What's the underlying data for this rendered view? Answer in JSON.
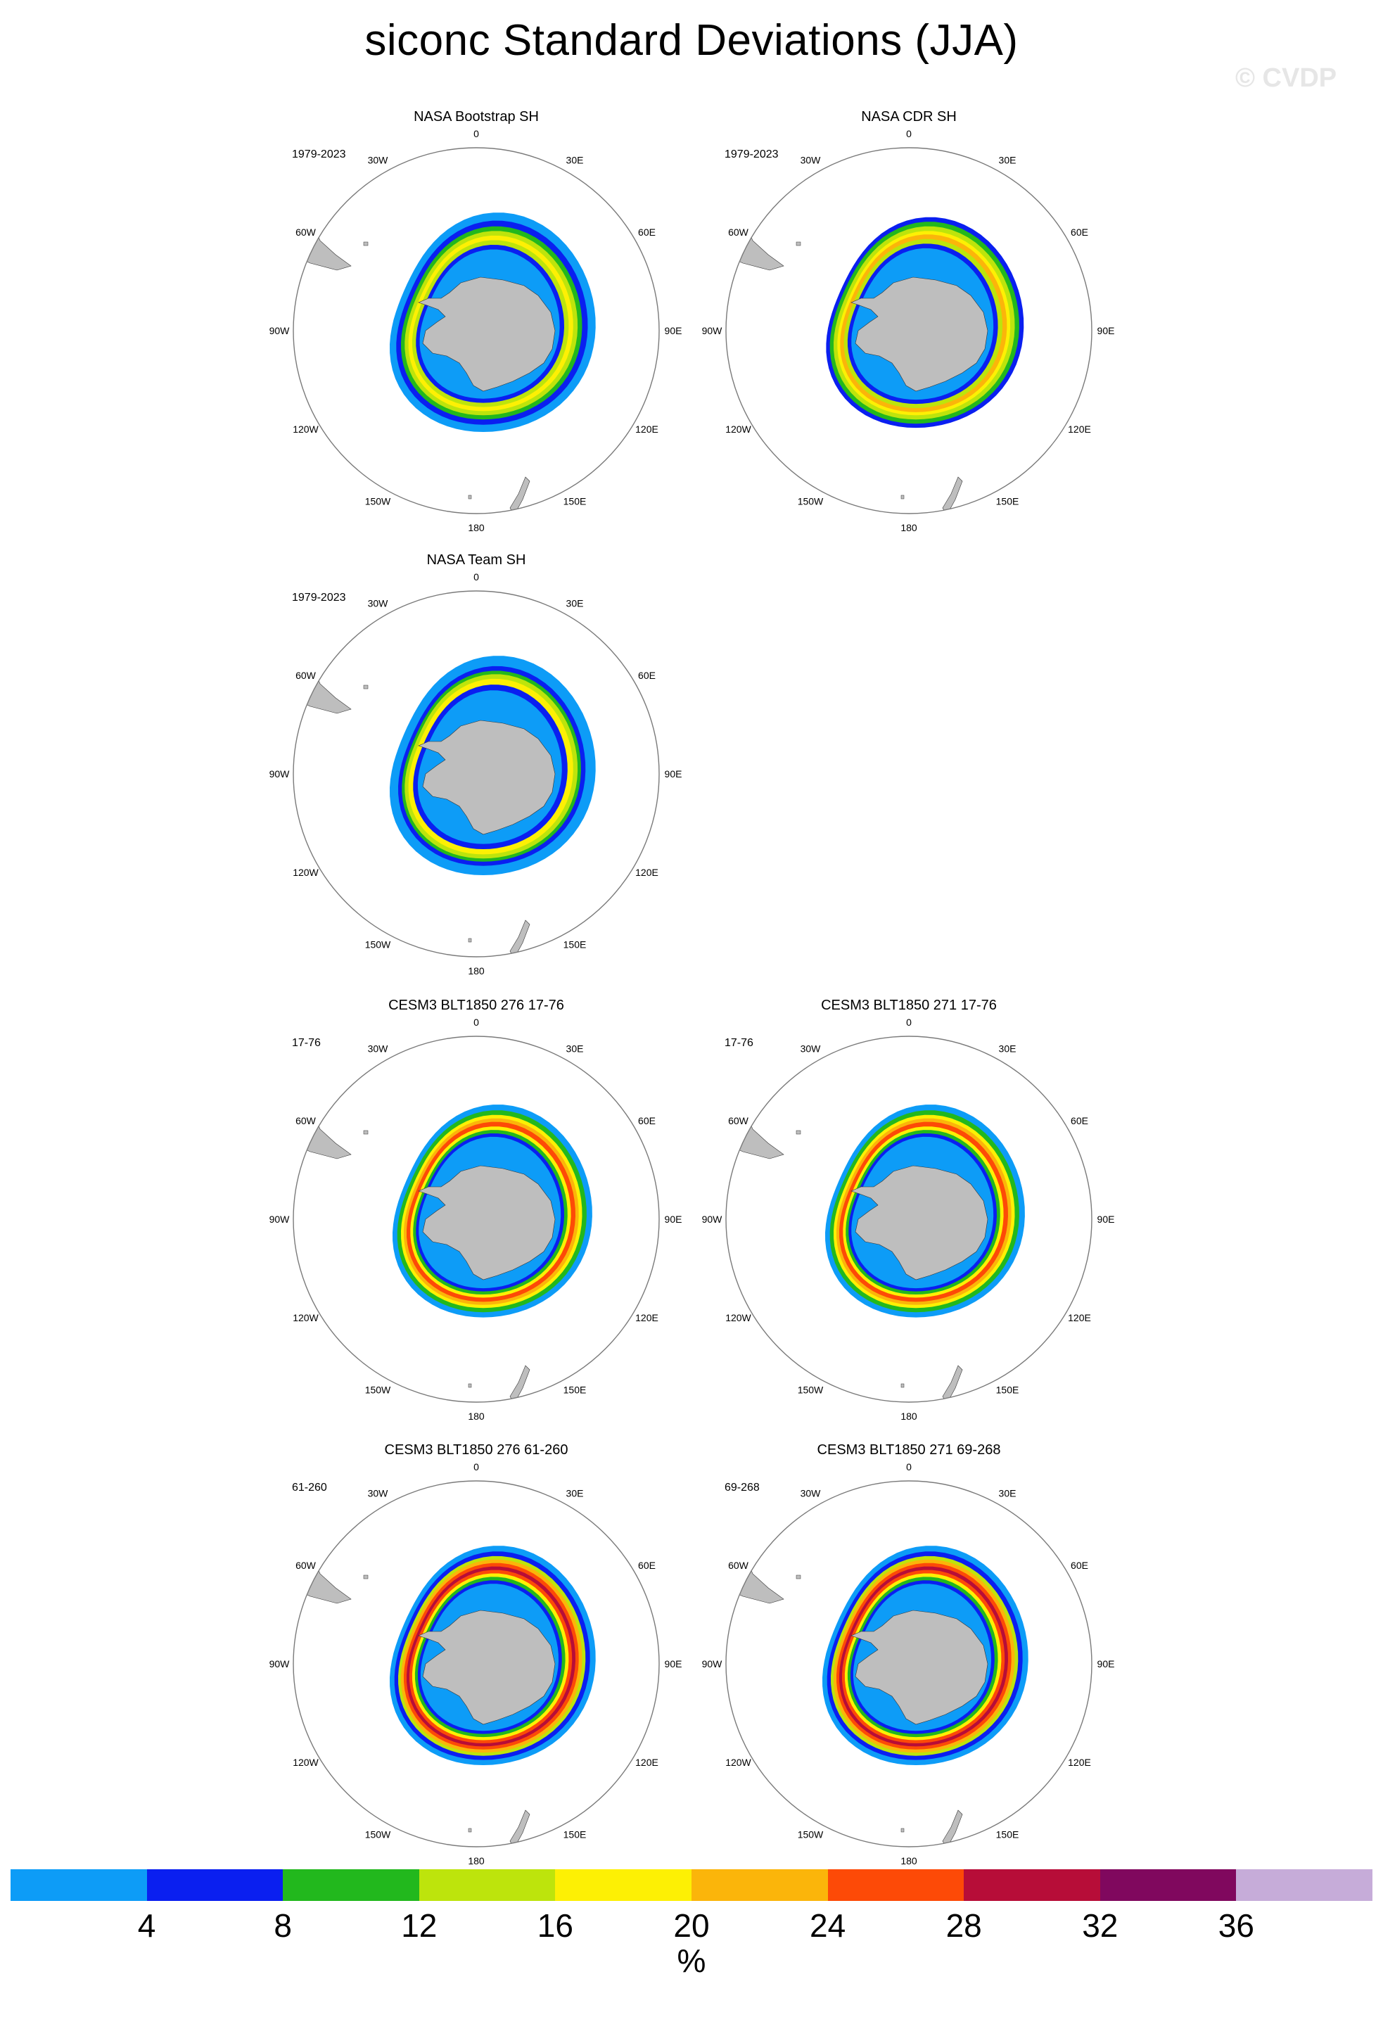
{
  "title": "siconc Standard Deviations (JJA)",
  "watermark": "© CVDP",
  "panels": [
    {
      "title": "NASA Bootstrap SH",
      "years": "1979-2023",
      "style": "obs"
    },
    {
      "title": "NASA CDR SH",
      "years": "1979-2023",
      "style": "cdr"
    },
    {
      "title": "NASA Team SH",
      "years": "1979-2023",
      "style": "team"
    },
    {
      "title": "CESM3 BLT1850 276 17-76",
      "years": "17-76",
      "style": "model"
    },
    {
      "title": "CESM3 BLT1850 271 17-76",
      "years": "17-76",
      "style": "model"
    },
    {
      "title": "CESM3 BLT1850 276 61-260",
      "years": "61-260",
      "style": "model_strong"
    },
    {
      "title": "CESM3 BLT1850 271 69-268",
      "years": "69-268",
      "style": "model_strong"
    }
  ],
  "longitude_labels": [
    "0",
    "30E",
    "60E",
    "90E",
    "120E",
    "150E",
    "180",
    "150W",
    "120W",
    "90W",
    "60W",
    "30W"
  ],
  "colorbar": {
    "colors": [
      "#0d9cf7",
      "#0a1ff0",
      "#22b81d",
      "#bde40c",
      "#fdf004",
      "#fbb50a",
      "#fd4a07",
      "#b70d38",
      "#80085e",
      "#c6acd9"
    ],
    "labels": [
      "4",
      "8",
      "12",
      "16",
      "20",
      "24",
      "28",
      "32",
      "36"
    ],
    "units": "%"
  },
  "land_color": "#bebebe"
}
